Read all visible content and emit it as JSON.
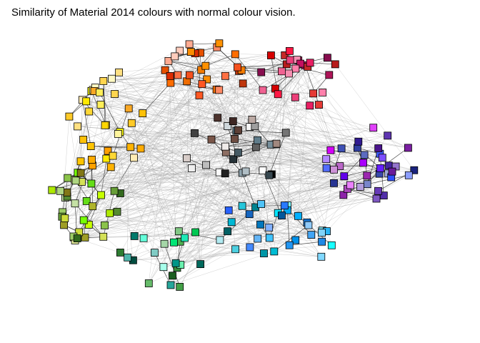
{
  "title": "Similarity of Material 2014 colours with normal colour vision.",
  "node_shape": "square swatch with black outline",
  "edge_color_strong": "#111111",
  "edge_color_weak": "#9a9a9a",
  "colour_regions": [
    {
      "name": "reds-pinks",
      "colors": [
        "#b71c1c",
        "#d50000",
        "#c62828",
        "#e53935",
        "#ff1744",
        "#ad1457",
        "#c51162",
        "#f06292",
        "#e91e63",
        "#880e4f",
        "#ff80ab",
        "#f48fb1",
        "#ec407a"
      ]
    },
    {
      "name": "oranges",
      "colors": [
        "#e65100",
        "#ef6c00",
        "#ff6d00",
        "#f57c00",
        "#fb8c00",
        "#ff9100",
        "#ff5722",
        "#f4511e",
        "#ff8a65",
        "#ffab91",
        "#ffccbc",
        "#bf360c",
        "#ff7043",
        "#dd2c00"
      ]
    },
    {
      "name": "ambers-yellows",
      "colors": [
        "#ffa000",
        "#ffb300",
        "#ffc107",
        "#ffca28",
        "#ffd54f",
        "#ffe082",
        "#ffecb3",
        "#ffd600",
        "#ffea00",
        "#ffff00",
        "#fff59d",
        "#fff9c4",
        "#ffee58",
        "#fdd835",
        "#f9a825",
        "#ffab00",
        "#ffc400"
      ]
    },
    {
      "name": "limes-greens",
      "colors": [
        "#c6ff00",
        "#aeea00",
        "#9e9d24",
        "#afb42b",
        "#cddc39",
        "#d4e157",
        "#e6ee9c",
        "#76ff03",
        "#64dd17",
        "#8bc34a",
        "#9ccc65",
        "#aed581",
        "#c5e1a5",
        "#689f38",
        "#558b2f",
        "#33691e",
        "#827717"
      ]
    },
    {
      "name": "greens-teals",
      "colors": [
        "#2e7d32",
        "#388e3c",
        "#43a047",
        "#4caf50",
        "#66bb6a",
        "#81c784",
        "#a5d6a7",
        "#00c853",
        "#00e676",
        "#69f0ae",
        "#1b5e20",
        "#004d40",
        "#00695c",
        "#00796b",
        "#009688",
        "#26a69a",
        "#4db6ac",
        "#80cbc4",
        "#1de9b6",
        "#64ffda",
        "#a7ffeb"
      ]
    },
    {
      "name": "cyans-blues",
      "colors": [
        "#00b8d4",
        "#00e5ff",
        "#18ffff",
        "#84ffff",
        "#00bcd4",
        "#26c6da",
        "#4dd0e1",
        "#80deea",
        "#b2ebf2",
        "#006064",
        "#00838f",
        "#0097a7",
        "#0091ea",
        "#00b0ff",
        "#40c4ff",
        "#80d8ff",
        "#03a9f4",
        "#29b6f6",
        "#4fc3f7",
        "#81d4fa",
        "#0277bd",
        "#01579b",
        "#1565c0",
        "#1976d2",
        "#1e88e5",
        "#2196f3",
        "#42a5f5",
        "#64b5f6",
        "#90caf9",
        "#2962ff",
        "#2979ff",
        "#448aff",
        "#82b1ff"
      ]
    },
    {
      "name": "indigos-purples",
      "colors": [
        "#1a237e",
        "#283593",
        "#303f9f",
        "#3949ab",
        "#3f51b5",
        "#5c6bc0",
        "#7986cb",
        "#9fa8da",
        "#304ffe",
        "#3d5afe",
        "#536dfe",
        "#8c9eff",
        "#311b92",
        "#4527a0",
        "#512da8",
        "#5e35b1",
        "#673ab7",
        "#7e57c2",
        "#9575cd",
        "#b39ddb",
        "#6200ea",
        "#651fff",
        "#7c4dff",
        "#b388ff",
        "#4a148c",
        "#6a1b9a",
        "#7b1fa2",
        "#8e24aa",
        "#9c27b0",
        "#ab47bc",
        "#ba68c8",
        "#ce93d8",
        "#aa00ff",
        "#d500f9",
        "#e040fb",
        "#ea80fc"
      ]
    },
    {
      "name": "greys-browns",
      "colors": [
        "#ffffff",
        "#fafafa",
        "#f5f5f5",
        "#eeeeee",
        "#e0e0e0",
        "#bdbdbd",
        "#9e9e9e",
        "#757575",
        "#616161",
        "#424242",
        "#212121",
        "#000000",
        "#263238",
        "#37474f",
        "#455a64",
        "#546e7a",
        "#607d8b",
        "#78909c",
        "#90a4ae",
        "#b0bec5",
        "#cfd8dc",
        "#3e2723",
        "#4e342e",
        "#5d4037",
        "#6d4c41",
        "#795548",
        "#8d6e63",
        "#a1887f",
        "#bcaaa4",
        "#d7ccc8",
        "#efebe9"
      ]
    }
  ]
}
